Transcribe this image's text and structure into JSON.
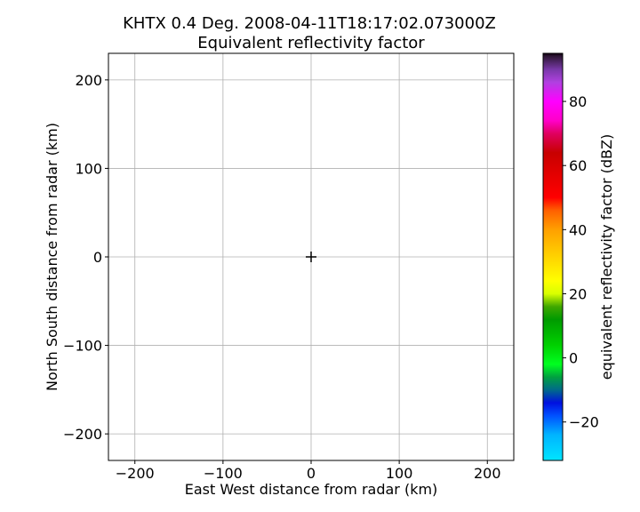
{
  "chart_data": {
    "type": "heatmap",
    "title": "KHTX 0.4 Deg. 2008-04-11T18:17:02.073000Z",
    "subtitle": "Equivalent reflectivity factor",
    "xlabel": "East West distance from radar (km)",
    "ylabel": "North South distance from radar (km)",
    "xlim": [
      -230,
      230
    ],
    "ylim": [
      -230,
      230
    ],
    "xticks": [
      -200,
      -100,
      0,
      100,
      200
    ],
    "yticks": [
      -200,
      -100,
      0,
      100,
      200
    ],
    "x_tick_labels": [
      "−200",
      "−100",
      "0",
      "100",
      "200"
    ],
    "y_tick_labels": [
      "−200",
      "−100",
      "0",
      "100",
      "200"
    ],
    "grid": true,
    "radar_marker": {
      "x": 0,
      "y": 0,
      "symbol": "+"
    },
    "data": [],
    "colorbar": {
      "label": "equivalent reflectivity factor (dBZ)",
      "range": [
        -32,
        95
      ],
      "ticks": [
        -20,
        0,
        20,
        40,
        60,
        80
      ],
      "tick_labels": [
        "−20",
        "0",
        "20",
        "40",
        "60",
        "80"
      ],
      "colormap_stops": [
        {
          "value": -32,
          "color": "#00e5ff"
        },
        {
          "value": -24,
          "color": "#00b4ff"
        },
        {
          "value": -18,
          "color": "#0050ff"
        },
        {
          "value": -14,
          "color": "#0010e0"
        },
        {
          "value": -10,
          "color": "#006a8a"
        },
        {
          "value": -6,
          "color": "#00a040"
        },
        {
          "value": -2,
          "color": "#00ff20"
        },
        {
          "value": 4,
          "color": "#00d000"
        },
        {
          "value": 12,
          "color": "#009a00"
        },
        {
          "value": 16,
          "color": "#40a800"
        },
        {
          "value": 20,
          "color": "#d8ff00"
        },
        {
          "value": 24,
          "color": "#ffff00"
        },
        {
          "value": 32,
          "color": "#ffd000"
        },
        {
          "value": 40,
          "color": "#ffa000"
        },
        {
          "value": 46,
          "color": "#ff6000"
        },
        {
          "value": 50,
          "color": "#ff0000"
        },
        {
          "value": 58,
          "color": "#e00000"
        },
        {
          "value": 64,
          "color": "#c80000"
        },
        {
          "value": 70,
          "color": "#e00060"
        },
        {
          "value": 74,
          "color": "#ff00c8"
        },
        {
          "value": 80,
          "color": "#ff00ff"
        },
        {
          "value": 86,
          "color": "#b040e0"
        },
        {
          "value": 90,
          "color": "#7838a8"
        },
        {
          "value": 94,
          "color": "#301838"
        },
        {
          "value": 95,
          "color": "#100010"
        }
      ]
    }
  }
}
